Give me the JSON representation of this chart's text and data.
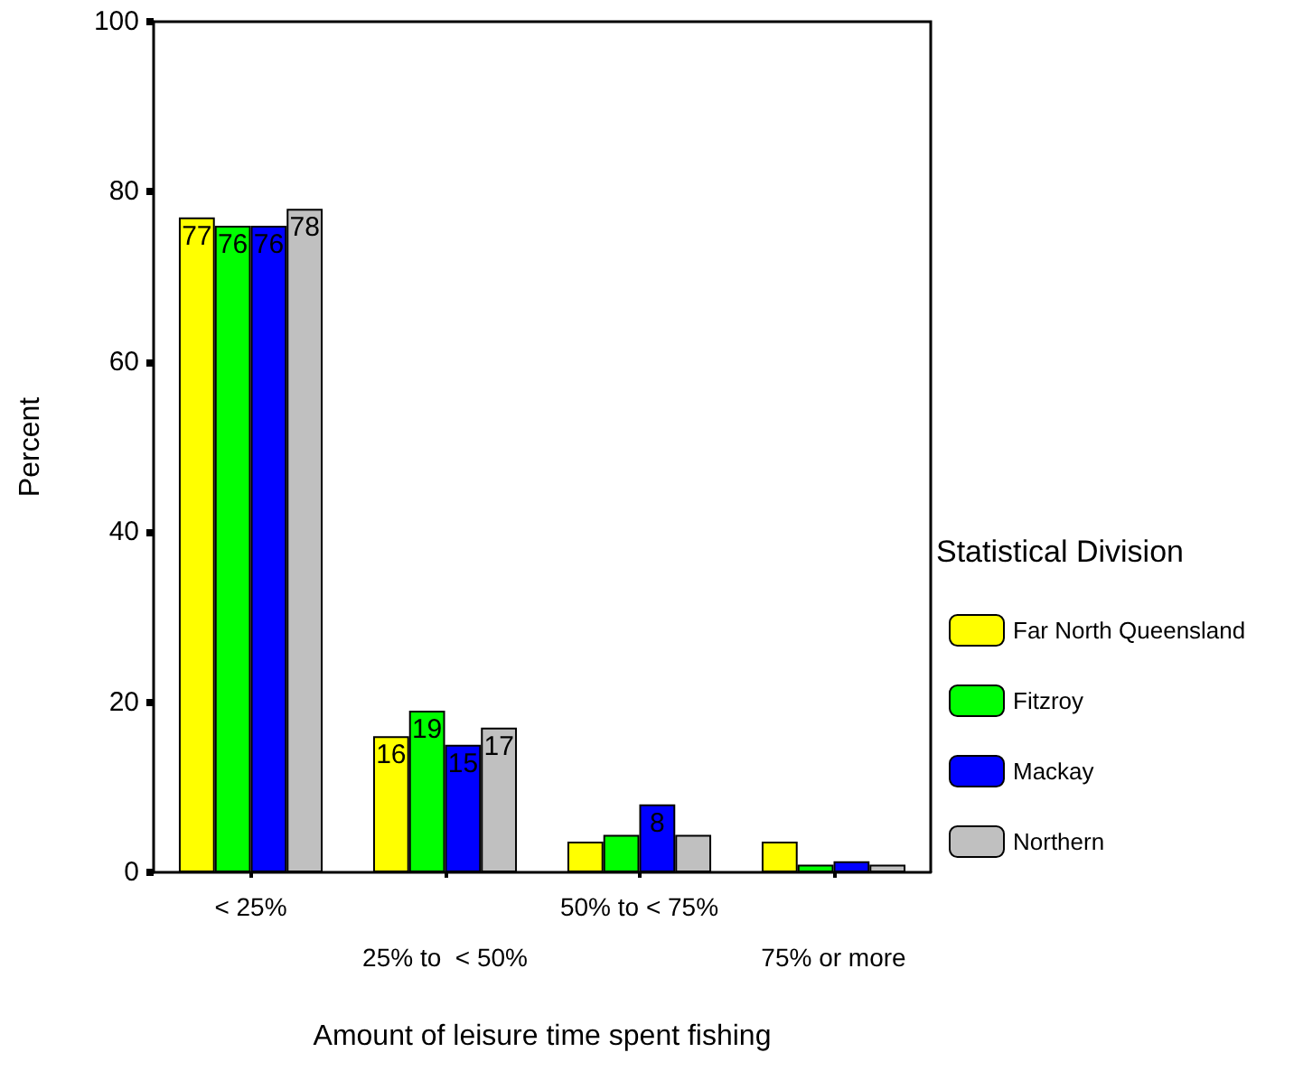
{
  "chart_data": {
    "type": "bar",
    "xlabel": "Amount of leisure time spent fishing",
    "ylabel": "Percent",
    "legend_title": "Statistical Division",
    "categories": [
      "< 25%",
      "25% to  < 50%",
      "50% to < 75%",
      "75% or more"
    ],
    "series": [
      {
        "name": "Far North Queensland",
        "color": "#ffff00",
        "values": [
          77,
          16,
          3.6,
          3.6
        ],
        "value_labels": [
          "77",
          "16",
          null,
          null
        ]
      },
      {
        "name": "Fitzroy",
        "color": "#00ff00",
        "values": [
          76,
          19,
          4.4,
          0.9
        ],
        "value_labels": [
          "76",
          "19",
          null,
          null
        ]
      },
      {
        "name": "Mackay",
        "color": "#0000ff",
        "values": [
          76,
          15,
          8,
          1.3
        ],
        "value_labels": [
          "76",
          "15",
          "8",
          null
        ]
      },
      {
        "name": "Northern",
        "color": "#c0c0c0",
        "values": [
          78,
          17,
          4.4,
          0.9
        ],
        "value_labels": [
          "78",
          "17",
          null,
          null
        ]
      }
    ],
    "ylim": [
      0,
      100
    ],
    "yticks": [
      0,
      20,
      40,
      60,
      80,
      100
    ],
    "grid": false,
    "legend": "right"
  }
}
